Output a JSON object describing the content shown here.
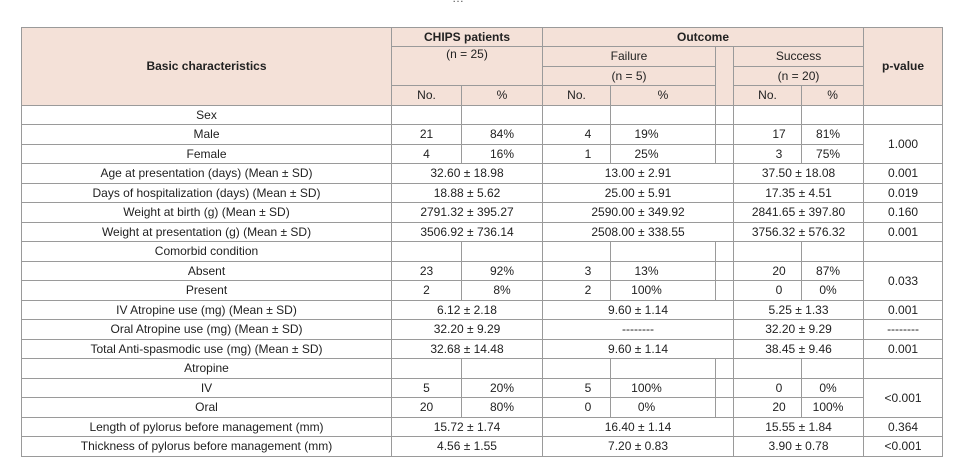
{
  "cropped_caption": "…",
  "header": {
    "basic": "Basic characteristics",
    "chips": "CHIPS patients",
    "chips_n": "(n = 25)",
    "outcome": "Outcome",
    "failure": "Failure",
    "failure_n": "(n = 5)",
    "success": "Success",
    "success_n": "(n = 20)",
    "pvalue": "p-value",
    "no": "No.",
    "pct": "%"
  },
  "rows": {
    "sex": "Sex",
    "male": {
      "label": "Male",
      "c_no": "21",
      "c_pct": "84%",
      "f_no": "4",
      "f_pct": "19%",
      "s_no": "17",
      "s_pct": "81%"
    },
    "female": {
      "label": "Female",
      "c_no": "4",
      "c_pct": "16%",
      "f_no": "1",
      "f_pct": "25%",
      "s_no": "3",
      "s_pct": "75%"
    },
    "sex_p": "1.000",
    "age": {
      "label": "Age at presentation (days) (Mean ± SD)",
      "c": "32.60 ± 18.98",
      "f": "13.00 ± 2.91",
      "s": "37.50 ± 18.08",
      "p": "0.001"
    },
    "hosp": {
      "label": "Days of hospitalization (days) (Mean ± SD)",
      "c": "18.88 ± 5.62",
      "f": "25.00 ± 5.91",
      "s": "17.35 ± 4.51",
      "p": "0.019"
    },
    "wbirth": {
      "label": "Weight at birth (g) (Mean ± SD)",
      "c": "2791.32 ± 395.27",
      "f": "2590.00 ± 349.92",
      "s": "2841.65 ± 397.80",
      "p": "0.160"
    },
    "wpres": {
      "label": "Weight at presentation (g) (Mean ± SD)",
      "c": "3506.92 ± 736.14",
      "f": "2508.00 ± 338.55",
      "s": "3756.32 ± 576.32",
      "p": "0.001"
    },
    "comorbid": "Comorbid condition",
    "absent": {
      "label": "Absent",
      "c_no": "23",
      "c_pct": "92%",
      "f_no": "3",
      "f_pct": "13%",
      "s_no": "20",
      "s_pct": "87%"
    },
    "present": {
      "label": "Present",
      "c_no": "2",
      "c_pct": "8%",
      "f_no": "2",
      "f_pct": "100%",
      "s_no": "0",
      "s_pct": "0%"
    },
    "comorbid_p": "0.033",
    "iv_atropine": {
      "label": "IV Atropine use (mg) (Mean ± SD)",
      "c": "6.12 ± 2.18",
      "f": "9.60 ± 1.14",
      "s": "5.25 ± 1.33",
      "p": "0.001"
    },
    "oral_atropine": {
      "label": "Oral Atropine use (mg) (Mean ± SD)",
      "c": "32.20 ± 9.29",
      "f": "--------",
      "s": "32.20 ± 9.29",
      "p": "--------"
    },
    "antispas": {
      "label": "Total Anti-spasmodic use (mg) (Mean ± SD)",
      "c": "32.68 ± 14.48",
      "f": "9.60 ± 1.14",
      "s": "38.45 ± 9.46",
      "p": "0.001"
    },
    "atropine": "Atropine",
    "iv": {
      "label": "IV",
      "c_no": "5",
      "c_pct": "20%",
      "f_no": "5",
      "f_pct": "100%",
      "s_no": "0",
      "s_pct": "0%"
    },
    "oral": {
      "label": "Oral",
      "c_no": "20",
      "c_pct": "80%",
      "f_no": "0",
      "f_pct": "0%",
      "s_no": "20",
      "s_pct": "100%"
    },
    "atropine_p": "<0.001",
    "length": {
      "label": "Length of pylorus before management (mm)",
      "c": "15.72 ± 1.74",
      "f": "16.40 ± 1.14",
      "s": "15.55 ± 1.84",
      "p": "0.364"
    },
    "thick": {
      "label": "Thickness of pylorus before management (mm)",
      "c": "4.56 ± 1.55",
      "f": "7.20 ± 0.83",
      "s": "3.90 ± 0.78",
      "p": "<0.001"
    }
  }
}
